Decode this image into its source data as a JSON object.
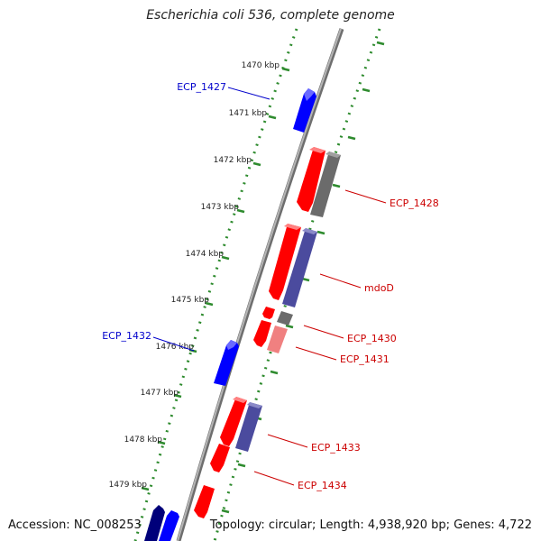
{
  "title": "Escherichia coli 536, complete genome",
  "footer": {
    "accession": "Accession: NC_008253",
    "topology": "Topology: circular; Length: 4,938,920 bp; Genes: 4,722"
  },
  "ticks": [
    "1470 kbp",
    "1471 kbp",
    "1472 kbp",
    "1473 kbp",
    "1474 kbp",
    "1475 kbp",
    "1476 kbp",
    "1477 kbp",
    "1478 kbp",
    "1479 kbp"
  ],
  "gene_labels": [
    {
      "name": "ECP_1427",
      "side": "left"
    },
    {
      "name": "ECP_1428",
      "side": "right"
    },
    {
      "name": "mdoD",
      "side": "right"
    },
    {
      "name": "ECP_1430",
      "side": "right"
    },
    {
      "name": "ECP_1431",
      "side": "right"
    },
    {
      "name": "ECP_1432",
      "side": "left"
    },
    {
      "name": "ECP_1433",
      "side": "right"
    },
    {
      "name": "ECP_1434",
      "side": "right"
    }
  ],
  "colors": {
    "forward_gene": "#0000ff",
    "reverse_gene": "#ff0000",
    "orf_gray": "#6b6b6b",
    "orf_purple": "#4b4b9e",
    "orf_pink": "#f08080",
    "dotted_ring": "#2e8b2e",
    "backbone": "#8a8a8a",
    "left_label": "#0000cc",
    "right_label": "#cc0000"
  }
}
